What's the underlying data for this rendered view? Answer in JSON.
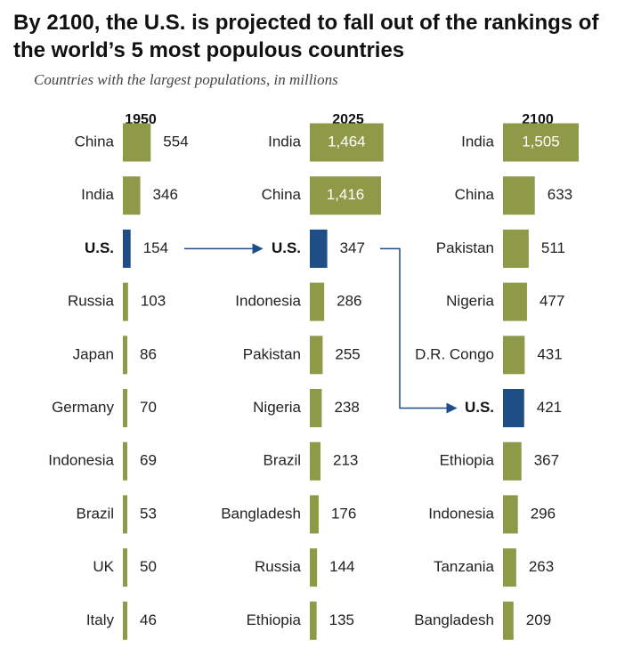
{
  "title": "By 2100, the U.S. is projected to fall out of the rankings of the world’s 5 most populous countries",
  "subtitle": "Countries with the largest populations, in millions",
  "colors": {
    "bar": "#8f9a48",
    "highlight": "#1f4e86",
    "arrow": "#1f4e86",
    "label_inside": "#ffffff",
    "text": "#222222"
  },
  "chart_data": {
    "type": "bar",
    "orientation": "horizontal",
    "units": "millions",
    "highlight": "U.S.",
    "panels": [
      {
        "year": "1950",
        "items": [
          {
            "country": "China",
            "value": 554,
            "label": "554"
          },
          {
            "country": "India",
            "value": 346,
            "label": "346"
          },
          {
            "country": "U.S.",
            "value": 154,
            "label": "154"
          },
          {
            "country": "Russia",
            "value": 103,
            "label": "103"
          },
          {
            "country": "Japan",
            "value": 86,
            "label": "86"
          },
          {
            "country": "Germany",
            "value": 70,
            "label": "70"
          },
          {
            "country": "Indonesia",
            "value": 69,
            "label": "69"
          },
          {
            "country": "Brazil",
            "value": 53,
            "label": "53"
          },
          {
            "country": "UK",
            "value": 50,
            "label": "50"
          },
          {
            "country": "Italy",
            "value": 46,
            "label": "46"
          }
        ]
      },
      {
        "year": "2025",
        "items": [
          {
            "country": "India",
            "value": 1464,
            "label": "1,464"
          },
          {
            "country": "China",
            "value": 1416,
            "label": "1,416"
          },
          {
            "country": "U.S.",
            "value": 347,
            "label": "347"
          },
          {
            "country": "Indonesia",
            "value": 286,
            "label": "286"
          },
          {
            "country": "Pakistan",
            "value": 255,
            "label": "255"
          },
          {
            "country": "Nigeria",
            "value": 238,
            "label": "238"
          },
          {
            "country": "Brazil",
            "value": 213,
            "label": "213"
          },
          {
            "country": "Bangladesh",
            "value": 176,
            "label": "176"
          },
          {
            "country": "Russia",
            "value": 144,
            "label": "144"
          },
          {
            "country": "Ethiopia",
            "value": 135,
            "label": "135"
          }
        ]
      },
      {
        "year": "2100",
        "items": [
          {
            "country": "India",
            "value": 1505,
            "label": "1,505"
          },
          {
            "country": "China",
            "value": 633,
            "label": "633"
          },
          {
            "country": "Pakistan",
            "value": 511,
            "label": "511"
          },
          {
            "country": "Nigeria",
            "value": 477,
            "label": "477"
          },
          {
            "country": "D.R. Congo",
            "value": 431,
            "label": "431"
          },
          {
            "country": "U.S.",
            "value": 421,
            "label": "421"
          },
          {
            "country": "Ethiopia",
            "value": 367,
            "label": "367"
          },
          {
            "country": "Indonesia",
            "value": 296,
            "label": "296"
          },
          {
            "country": "Tanzania",
            "value": 263,
            "label": "263"
          },
          {
            "country": "Bangladesh",
            "value": 209,
            "label": "209"
          }
        ]
      }
    ]
  }
}
